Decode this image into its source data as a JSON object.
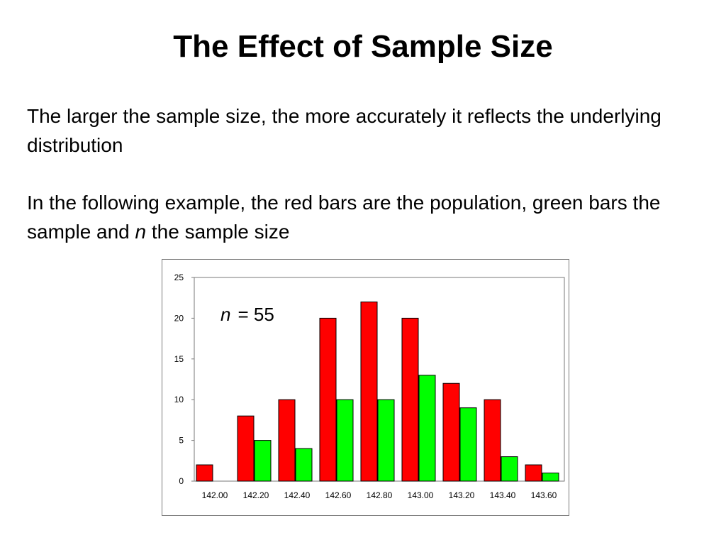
{
  "slide": {
    "title": "The Effect of Sample Size",
    "bullet1": "The larger the sample size, the more accurately it reflects the underlying distribution",
    "bullet2_before": "In the following example, the red bars are the population, green bars the sample and ",
    "bullet2_italic": "n",
    "bullet2_after": " the sample size"
  },
  "chart_data": {
    "type": "bar",
    "categories": [
      "142.00",
      "142.20",
      "142.40",
      "142.60",
      "142.80",
      "143.00",
      "143.20",
      "143.40",
      "143.60"
    ],
    "series": [
      {
        "values": [
          2,
          8,
          10,
          20,
          22,
          20,
          12,
          10,
          2
        ],
        "color": "#ff0000"
      },
      {
        "values": [
          0,
          5,
          4,
          10,
          10,
          13,
          9,
          3,
          1
        ],
        "color": "#00ff00"
      }
    ],
    "ylim": [
      0,
      25
    ],
    "yticks": [
      "0",
      "5",
      "10",
      "15",
      "20",
      "25"
    ],
    "annotation_italic": "n",
    "annotation_text": "= 55",
    "grid": false,
    "legend": "none"
  }
}
